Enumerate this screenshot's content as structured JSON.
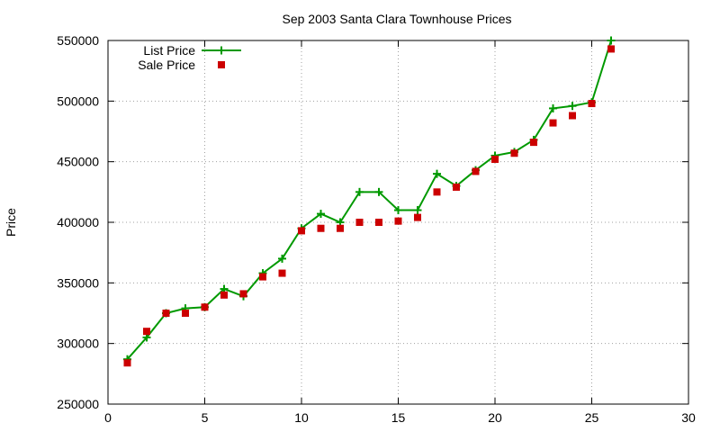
{
  "chart_data": {
    "type": "line",
    "title": "Sep 2003 Santa Clara Townhouse Prices",
    "xlabel": "",
    "ylabel": "Price",
    "xlim": [
      0,
      30
    ],
    "ylim": [
      250000,
      550000
    ],
    "xticks": [
      0,
      5,
      10,
      15,
      20,
      25,
      30
    ],
    "yticks": [
      250000,
      300000,
      350000,
      400000,
      450000,
      500000,
      550000
    ],
    "grid": true,
    "legend_position": "top-left",
    "series": [
      {
        "name": "List Price",
        "style": "line-plus",
        "color": "#009900",
        "x": [
          1,
          2,
          3,
          4,
          5,
          6,
          7,
          8,
          9,
          10,
          11,
          12,
          13,
          14,
          15,
          16,
          17,
          18,
          19,
          20,
          21,
          22,
          23,
          24,
          25,
          26
        ],
        "y": [
          287000,
          305000,
          325000,
          329000,
          330000,
          345000,
          339000,
          358000,
          370000,
          395000,
          407000,
          400000,
          425000,
          425000,
          410000,
          410000,
          440000,
          430000,
          443000,
          455000,
          458000,
          468000,
          494000,
          496000,
          499000,
          550000
        ]
      },
      {
        "name": "Sale Price",
        "style": "square-markers",
        "color": "#cc0000",
        "x": [
          1,
          2,
          3,
          4,
          5,
          6,
          7,
          8,
          9,
          10,
          11,
          12,
          13,
          14,
          15,
          16,
          17,
          18,
          19,
          20,
          21,
          22,
          23,
          24,
          25,
          26
        ],
        "y": [
          284000,
          310000,
          325000,
          325000,
          330000,
          340000,
          341000,
          355000,
          358000,
          393000,
          395000,
          395000,
          400000,
          400000,
          401000,
          404000,
          425000,
          429000,
          442000,
          452000,
          457000,
          466000,
          482000,
          488000,
          498000,
          543000
        ]
      }
    ]
  }
}
